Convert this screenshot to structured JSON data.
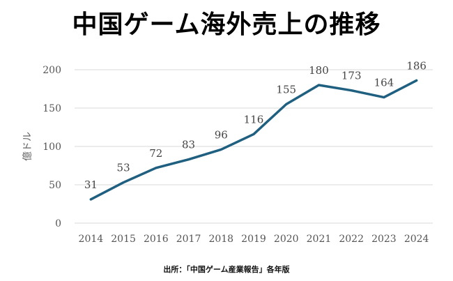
{
  "chart_data": {
    "type": "line",
    "title": "中国ゲーム海外売上の推移",
    "ylabel": "億ドル",
    "xlabel": "",
    "categories": [
      "2014",
      "2015",
      "2016",
      "2017",
      "2018",
      "2019",
      "2020",
      "2021",
      "2022",
      "2023",
      "2024"
    ],
    "values": [
      31,
      53,
      72,
      83,
      96,
      116,
      155,
      180,
      173,
      164,
      186
    ],
    "data_labels": [
      "31",
      "53",
      "72",
      "83",
      "96",
      "116",
      "155",
      "180",
      "173",
      "164",
      "186"
    ],
    "ylim": [
      0,
      200
    ],
    "yticks": [
      "0",
      "50",
      "100",
      "150",
      "200"
    ],
    "grid": true,
    "line_color": "#1f5f80",
    "source": "出所：「中国ゲーム産業報告」各年版"
  }
}
